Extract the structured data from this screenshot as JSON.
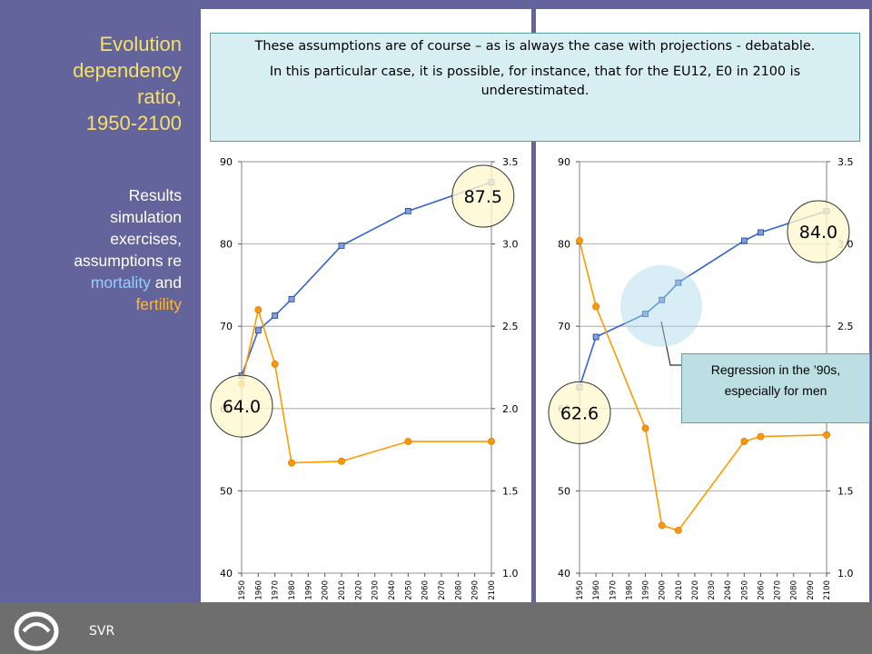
{
  "sidebar": {
    "title_lines": [
      "Evolution",
      "dependency",
      "ratio,",
      "1950-2100"
    ],
    "subtitle_lines": [
      "Results",
      "simulation",
      "exercises,",
      "assumptions re"
    ],
    "mortality_word": "mortality",
    "and_word": " and",
    "fertility_word": "fertility"
  },
  "callout": {
    "line1": "These assumptions are of course – as is always the case with projections - debatable.",
    "line2": "In this particular case, it is possible, for instance, that for the EU12, E0 in 2100 is underestimated."
  },
  "note": {
    "line1": "Regression in the ’90s,",
    "line2": "especially for men"
  },
  "footer": {
    "label": "SVR"
  },
  "colors": {
    "blue_series": "#3366cc",
    "orange_series": "#ff9900",
    "highlight_circle": "#fdf7d0"
  },
  "chart_data": [
    {
      "type": "line",
      "x_ticks": [
        "1950",
        "1960",
        "1970",
        "1980",
        "1990",
        "2000",
        "2010",
        "2020",
        "2030",
        "2040",
        "2050",
        "2060",
        "2070",
        "2080",
        "2090",
        "2100"
      ],
      "ylim": [
        40,
        90
      ],
      "y_ticks": [
        "40",
        "50",
        "60",
        "70",
        "80",
        "90"
      ],
      "y2lim": [
        1.0,
        3.5
      ],
      "y2_ticks": [
        "1.0",
        "1.5",
        "2.0",
        "2.5",
        "3.0",
        "3.5"
      ],
      "grid": true,
      "series": [
        {
          "axis": "left",
          "color": "#3366cc",
          "points": [
            [
              1950,
              64.0
            ],
            [
              1960,
              69.5
            ],
            [
              1970,
              71.3
            ],
            [
              1980,
              73.3
            ],
            [
              2010,
              79.8
            ],
            [
              2050,
              84.0
            ],
            [
              2100,
              87.5
            ]
          ]
        },
        {
          "axis": "right",
          "color": "#ff9900",
          "points": [
            [
              1950,
              2.15
            ],
            [
              1960,
              2.6
            ],
            [
              1970,
              2.27
            ],
            [
              1980,
              1.67
            ],
            [
              2010,
              1.68
            ],
            [
              2050,
              1.8
            ],
            [
              2100,
              1.8
            ]
          ]
        }
      ],
      "annotations": [
        {
          "label": "64.0",
          "x": 1950,
          "y": 60.3
        },
        {
          "label": "87.5",
          "x": 2095,
          "y": 85.8
        }
      ]
    },
    {
      "type": "line",
      "x_ticks": [
        "1950",
        "1960",
        "1970",
        "1980",
        "1990",
        "2000",
        "2010",
        "2020",
        "2030",
        "2040",
        "2050",
        "2060",
        "2070",
        "2080",
        "2090",
        "2100"
      ],
      "ylim": [
        40,
        90
      ],
      "y_ticks": [
        "40",
        "50",
        "60",
        "70",
        "80",
        "90"
      ],
      "y2lim": [
        1.0,
        3.5
      ],
      "y2_ticks": [
        "1.0",
        "1.5",
        "2.0",
        "2.5",
        "3.0",
        "3.5"
      ],
      "grid": true,
      "series": [
        {
          "axis": "left",
          "color": "#3366cc",
          "points": [
            [
              1950,
              62.6
            ],
            [
              1960,
              68.7
            ],
            [
              1990,
              71.5
            ],
            [
              2000,
              73.2
            ],
            [
              2010,
              75.3
            ],
            [
              2050,
              80.4
            ],
            [
              2060,
              81.4
            ],
            [
              2100,
              84.0
            ]
          ]
        },
        {
          "axis": "right",
          "color": "#ff9900",
          "points": [
            [
              1950,
              3.02
            ],
            [
              1960,
              2.62
            ],
            [
              1990,
              1.88
            ],
            [
              2000,
              1.29
            ],
            [
              2010,
              1.26
            ],
            [
              2050,
              1.8
            ],
            [
              2060,
              1.83
            ],
            [
              2100,
              1.84
            ]
          ]
        }
      ],
      "annotations": [
        {
          "label": "62.6",
          "x": 1950,
          "y": 59.5
        },
        {
          "label": "84.0",
          "x": 2095,
          "y": 81.5
        }
      ]
    }
  ]
}
